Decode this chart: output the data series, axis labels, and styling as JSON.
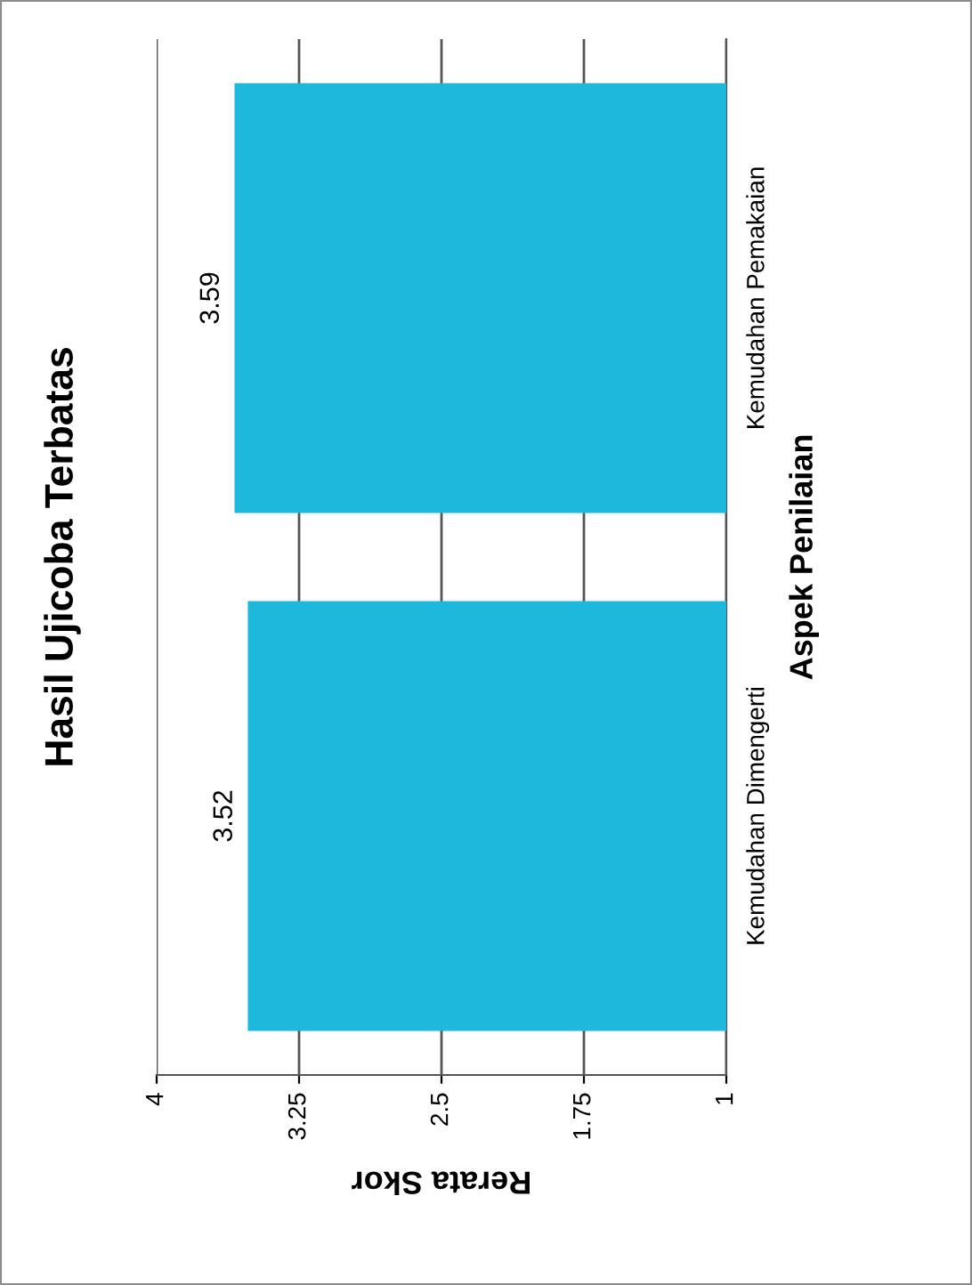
{
  "chart_data": {
    "type": "bar",
    "orientation": "horizontal",
    "title": "Hasil Ujicoba Terbatas",
    "xlabel": "Rerata Skor",
    "ylabel": "Aspek Penilaian",
    "categories": [
      "Kemudahan Pemakaian",
      "Kemudahan Dimengerti"
    ],
    "values": [
      3.59,
      3.52
    ],
    "color": "#1fb8dd",
    "xlim": [
      4,
      1
    ],
    "xticks": [
      4,
      3.25,
      2.5,
      1.75,
      1
    ],
    "grid": "x",
    "data_labels": true
  }
}
